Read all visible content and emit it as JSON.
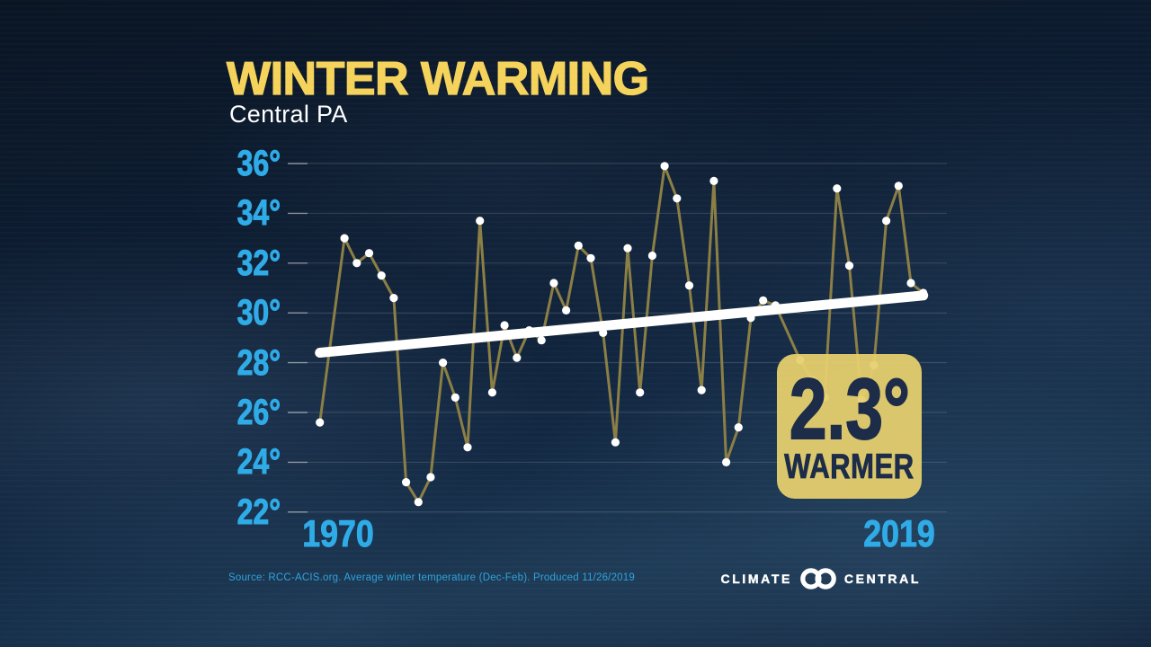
{
  "header": {
    "title": "WINTER WARMING",
    "subtitle": "Central PA"
  },
  "badge": {
    "value": "2.3°",
    "label": "WARMER"
  },
  "footer": {
    "source": "Source: RCC-ACIS.org. Average winter temperature (Dec-Feb). Produced 11/26/2019",
    "logo": {
      "left": "CLIMATE",
      "right": "CENTRAL",
      "mark": "interlocking-rings-icon"
    }
  },
  "colors": {
    "title_yellow": "#F5D35B",
    "axis_cyan": "#2FACE8",
    "line_olive": "#8C7F45",
    "marker_white": "#FFFFFF",
    "trend_white": "#FFFFFF",
    "badge_fill": "#E7CF6D",
    "badge_text": "#1C2C49",
    "background_navy": "#0E1F36"
  },
  "chart_data": {
    "type": "line",
    "title": "WINTER WARMING",
    "subtitle": "Central PA",
    "ylabel": "Average winter temperature (°F)",
    "x_start_label": "1970",
    "x_end_label": "2019",
    "yticks": [
      "36°",
      "34°",
      "32°",
      "30°",
      "28°",
      "26°",
      "24°",
      "22°"
    ],
    "ytick_values": [
      36,
      34,
      32,
      30,
      28,
      26,
      24,
      22
    ],
    "ylim": [
      21.8,
      36.4
    ],
    "grid": "horizontal",
    "legend_position": "none",
    "years": [
      1970,
      1971,
      1972,
      1973,
      1974,
      1975,
      1976,
      1977,
      1978,
      1979,
      1980,
      1981,
      1982,
      1983,
      1984,
      1985,
      1986,
      1987,
      1988,
      1989,
      1990,
      1991,
      1992,
      1993,
      1994,
      1995,
      1996,
      1997,
      1998,
      1999,
      2000,
      2001,
      2002,
      2003,
      2004,
      2005,
      2006,
      2007,
      2008,
      2009,
      2010,
      2011,
      2012,
      2013,
      2014,
      2015,
      2016,
      2017,
      2018,
      2019
    ],
    "values": [
      25.6,
      null,
      33.0,
      32.0,
      32.4,
      31.5,
      30.6,
      23.2,
      22.4,
      23.4,
      28.0,
      26.6,
      24.6,
      33.7,
      26.8,
      29.5,
      28.2,
      29.3,
      28.9,
      31.2,
      30.1,
      32.7,
      32.2,
      29.2,
      24.8,
      32.6,
      26.8,
      32.3,
      35.9,
      34.6,
      31.1,
      26.9,
      35.3,
      24.0,
      25.4,
      29.8,
      30.5,
      30.3,
      null,
      28.1,
      27.3,
      26.6,
      35.0,
      31.9,
      26.5,
      27.9,
      33.7,
      35.1,
      31.2,
      30.8
    ],
    "trend": {
      "label": "2.3° WARMER",
      "start_value": 28.4,
      "end_value": 30.7
    }
  }
}
